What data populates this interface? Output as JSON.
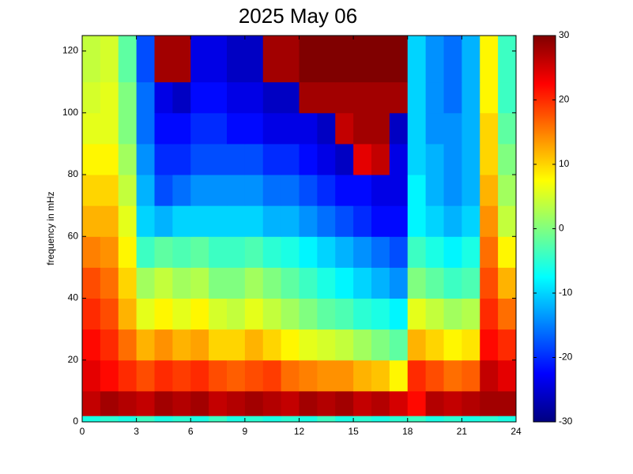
{
  "chart_data": {
    "type": "heatmap",
    "title": "2025 May 06",
    "y_label": "frequency in mHz",
    "colormap": "jet",
    "clim": [
      -30,
      30
    ],
    "cticks": [
      -30,
      -20,
      -10,
      0,
      10,
      20,
      30
    ],
    "xlim": [
      0,
      24
    ],
    "xticks": [
      0,
      3,
      6,
      9,
      12,
      15,
      18,
      21,
      24
    ],
    "ylim": [
      0,
      125
    ],
    "yticks": [
      0,
      20,
      40,
      60,
      80,
      100,
      120
    ],
    "xbins": [
      0,
      1,
      2,
      3,
      4,
      5,
      6,
      7,
      8,
      9,
      10,
      11,
      12,
      13,
      14,
      15,
      16,
      17,
      18,
      19,
      20,
      21,
      22,
      23,
      24
    ],
    "ybins": [
      0,
      2,
      10,
      20,
      30,
      40,
      50,
      60,
      70,
      80,
      90,
      100,
      110,
      125
    ],
    "values": [
      [
        -6,
        -5,
        -6,
        -4,
        -6,
        -5,
        -6,
        -4,
        -6,
        -5,
        -6,
        -5,
        -6,
        -4,
        -6,
        -5,
        -6,
        -5,
        -4,
        -6,
        -5,
        -6,
        -5,
        -6
      ],
      [
        26,
        28,
        27,
        26,
        28,
        27,
        28,
        26,
        27,
        28,
        27,
        26,
        28,
        27,
        28,
        26,
        27,
        25,
        22,
        27,
        26,
        27,
        28,
        28
      ],
      [
        24,
        22,
        20,
        18,
        20,
        19,
        20,
        18,
        17,
        18,
        19,
        16,
        15,
        14,
        14,
        12,
        11,
        8,
        20,
        18,
        16,
        17,
        26,
        24
      ],
      [
        22,
        20,
        16,
        12,
        14,
        12,
        13,
        10,
        10,
        12,
        10,
        8,
        6,
        5,
        4,
        2,
        0,
        -2,
        12,
        10,
        8,
        9,
        22,
        20
      ],
      [
        20,
        18,
        12,
        6,
        8,
        6,
        8,
        5,
        4,
        6,
        4,
        2,
        0,
        -2,
        -3,
        -5,
        -6,
        -8,
        6,
        4,
        2,
        3,
        20,
        16
      ],
      [
        18,
        16,
        10,
        2,
        4,
        2,
        3,
        0,
        0,
        2,
        0,
        -2,
        -4,
        -6,
        -8,
        -10,
        -12,
        -14,
        0,
        -2,
        -4,
        -3,
        18,
        12
      ],
      [
        15,
        14,
        8,
        -4,
        -2,
        -3,
        -2,
        -4,
        -4,
        -3,
        -5,
        -6,
        -8,
        -10,
        -12,
        -14,
        -16,
        -18,
        -4,
        -6,
        -8,
        -6,
        16,
        8
      ],
      [
        12,
        12,
        6,
        -10,
        -12,
        -10,
        -10,
        -10,
        -10,
        -10,
        -12,
        -12,
        -14,
        -16,
        -18,
        -20,
        -22,
        -22,
        -8,
        -10,
        -12,
        -10,
        14,
        4
      ],
      [
        10,
        10,
        4,
        -12,
        -18,
        -16,
        -14,
        -14,
        -14,
        -14,
        -16,
        -16,
        -18,
        -20,
        -22,
        -22,
        -24,
        -24,
        -8,
        -12,
        -14,
        -12,
        12,
        2
      ],
      [
        8,
        8,
        2,
        -14,
        -20,
        -20,
        -18,
        -18,
        -18,
        -18,
        -20,
        -20,
        -22,
        -24,
        -26,
        24,
        26,
        -24,
        -10,
        -12,
        -14,
        -12,
        10,
        0
      ],
      [
        6,
        6,
        0,
        -16,
        -22,
        -22,
        -20,
        -20,
        -22,
        -22,
        -24,
        -24,
        -24,
        -26,
        26,
        28,
        28,
        -26,
        -10,
        -14,
        -14,
        -12,
        10,
        -2
      ],
      [
        5,
        6,
        0,
        -16,
        -24,
        -26,
        -22,
        -22,
        -24,
        -24,
        -26,
        -26,
        28,
        28,
        28,
        28,
        28,
        28,
        -10,
        -14,
        -16,
        -12,
        8,
        -4
      ],
      [
        4,
        5,
        -2,
        -18,
        28,
        28,
        -24,
        -24,
        -26,
        -26,
        28,
        28,
        30,
        30,
        30,
        30,
        30,
        30,
        -10,
        -14,
        -16,
        -12,
        8,
        -4
      ]
    ]
  }
}
